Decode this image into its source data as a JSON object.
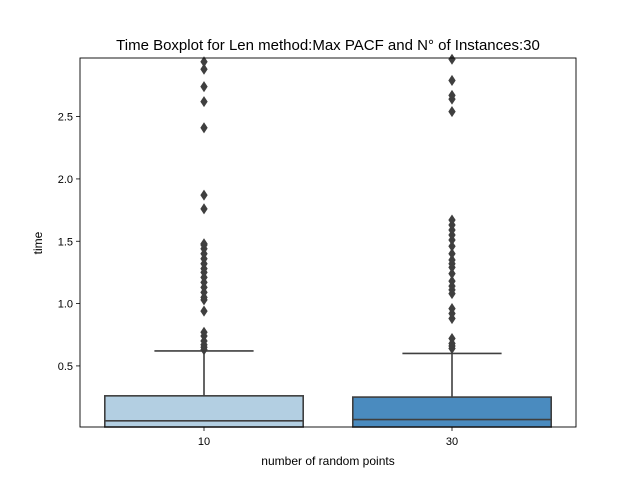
{
  "chart_data": {
    "type": "boxplot",
    "title": "Time Boxplot for Len method:Max PACF and N° of Instances:30",
    "xlabel": "number of random points",
    "ylabel": "time",
    "ylim": [
      0.01,
      2.97
    ],
    "yticks": [
      0.5,
      1.0,
      1.5,
      2.0,
      2.5
    ],
    "ytick_labels": [
      "0.5",
      "1.0",
      "1.5",
      "2.0",
      "2.5"
    ],
    "grid": false,
    "legend": "none",
    "categories": [
      "10",
      "30"
    ],
    "boxes": [
      {
        "category": "10",
        "color": "#b3cfe2",
        "q1": 0.01,
        "median": 0.06,
        "q3": 0.26,
        "whisker_low": 0.01,
        "whisker_high": 0.62,
        "outliers": [
          0.63,
          0.65,
          0.67,
          0.7,
          0.74,
          0.77,
          0.94,
          1.03,
          1.05,
          1.09,
          1.13,
          1.17,
          1.21,
          1.25,
          1.28,
          1.32,
          1.36,
          1.4,
          1.44,
          1.47,
          1.48,
          1.76,
          1.87,
          2.41,
          2.62,
          2.74,
          2.88,
          2.94
        ]
      },
      {
        "category": "30",
        "color": "#4a8bbf",
        "q1": 0.01,
        "median": 0.07,
        "q3": 0.25,
        "whisker_low": 0.01,
        "whisker_high": 0.6,
        "outliers": [
          0.64,
          0.66,
          0.68,
          0.72,
          0.88,
          0.92,
          0.96,
          1.08,
          1.11,
          1.14,
          1.18,
          1.24,
          1.29,
          1.32,
          1.35,
          1.4,
          1.46,
          1.51,
          1.55,
          1.59,
          1.63,
          1.67,
          2.54,
          2.64,
          2.67,
          2.79,
          2.96
        ]
      }
    ]
  }
}
